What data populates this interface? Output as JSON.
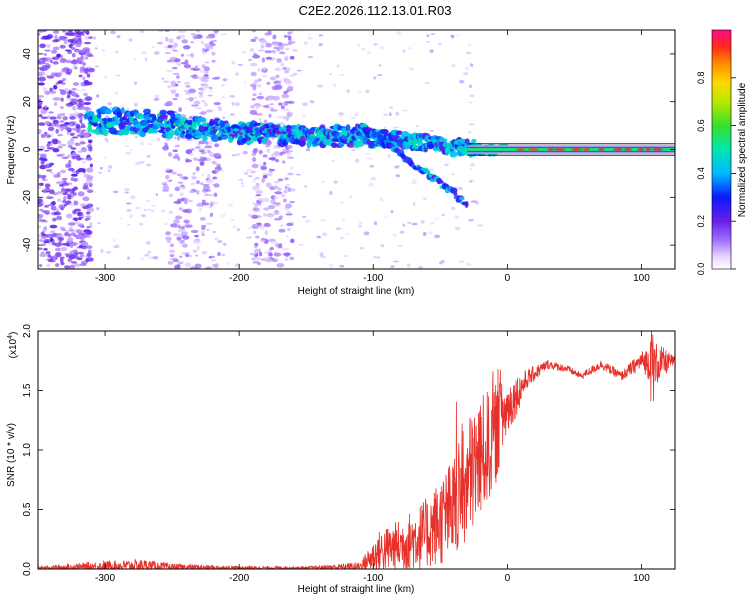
{
  "title": "C2E2.2026.112.13.01.R03",
  "chart_data": [
    {
      "type": "heatmap",
      "xlabel": "Height of straight line (km)",
      "ylabel": "Frequency (Hz)",
      "xlim": [
        -350,
        125
      ],
      "ylim": [
        -50,
        50
      ],
      "xticks": [
        -300,
        -200,
        -100,
        0,
        100
      ],
      "yticks": [
        -40,
        -20,
        0,
        20,
        40
      ],
      "colorbar": {
        "label": "Normalized spectral amplitude",
        "range": [
          0,
          1
        ],
        "ticks": [
          "0.0",
          "0.2",
          "0.4",
          "0.6",
          "0.8"
        ],
        "tick_values": [
          0.0,
          0.2,
          0.4,
          0.6,
          0.8
        ]
      },
      "features": {
        "noise_bands_x": [
          [
            -350,
            -310
          ],
          [
            -255,
            -215
          ],
          [
            -190,
            -160
          ]
        ],
        "signal_track": [
          {
            "x": -310,
            "f": 12
          },
          {
            "x": -260,
            "f": 11
          },
          {
            "x": -200,
            "f": 7
          },
          {
            "x": -150,
            "f": 6
          },
          {
            "x": -100,
            "f": 5
          },
          {
            "x": -60,
            "f": 3
          },
          {
            "x": -40,
            "f": 1
          },
          {
            "x": -20,
            "f": 0.5
          },
          {
            "x": 0,
            "f": 0
          },
          {
            "x": 125,
            "f": 0
          }
        ],
        "descending_branch": [
          {
            "x": -110,
            "f": 10
          },
          {
            "x": -80,
            "f": -2
          },
          {
            "x": -60,
            "f": -10
          },
          {
            "x": -40,
            "f": -18
          },
          {
            "x": -30,
            "f": -24
          }
        ],
        "peak_line_x": [
          -30,
          125
        ]
      }
    },
    {
      "type": "line",
      "xlabel": "Height of straight line (km)",
      "ylabel": "SNR (10 * v/v)",
      "scale_label": "(x10",
      "scale_exp": "4",
      "xlim": [
        -350,
        125
      ],
      "ylim": [
        0,
        2
      ],
      "xticks": [
        -300,
        -200,
        -100,
        0,
        100
      ],
      "yticks": [
        "0.0",
        "0.5",
        "1.0",
        "1.5",
        "2.0"
      ],
      "ytick_values": [
        0,
        0.5,
        1.0,
        1.5,
        2.0
      ],
      "series": [
        {
          "name": "SNR",
          "color": "#e8302a",
          "envelope": [
            {
              "x": -350,
              "base": 0.01,
              "amp": 0.01
            },
            {
              "x": -300,
              "base": 0.02,
              "amp": 0.05
            },
            {
              "x": -270,
              "base": 0.03,
              "amp": 0.05
            },
            {
              "x": -250,
              "base": 0.015,
              "amp": 0.03
            },
            {
              "x": -200,
              "base": 0.01,
              "amp": 0.015
            },
            {
              "x": -150,
              "base": 0.01,
              "amp": 0.01
            },
            {
              "x": -110,
              "base": 0.02,
              "amp": 0.04
            },
            {
              "x": -95,
              "base": 0.15,
              "amp": 0.18
            },
            {
              "x": -80,
              "base": 0.2,
              "amp": 0.22
            },
            {
              "x": -60,
              "base": 0.3,
              "amp": 0.3
            },
            {
              "x": -40,
              "base": 0.5,
              "amp": 0.45
            },
            {
              "x": -25,
              "base": 0.85,
              "amp": 0.55
            },
            {
              "x": -10,
              "base": 1.1,
              "amp": 0.45
            },
            {
              "x": 0,
              "base": 1.35,
              "amp": 0.25
            },
            {
              "x": 15,
              "base": 1.6,
              "amp": 0.08
            },
            {
              "x": 30,
              "base": 1.72,
              "amp": 0.04
            },
            {
              "x": 45,
              "base": 1.68,
              "amp": 0.03
            },
            {
              "x": 55,
              "base": 1.62,
              "amp": 0.03
            },
            {
              "x": 70,
              "base": 1.72,
              "amp": 0.04
            },
            {
              "x": 85,
              "base": 1.62,
              "amp": 0.04
            },
            {
              "x": 100,
              "base": 1.75,
              "amp": 0.08
            },
            {
              "x": 110,
              "base": 1.72,
              "amp": 0.2
            },
            {
              "x": 125,
              "base": 1.75,
              "amp": 0.03
            }
          ]
        }
      ]
    }
  ]
}
